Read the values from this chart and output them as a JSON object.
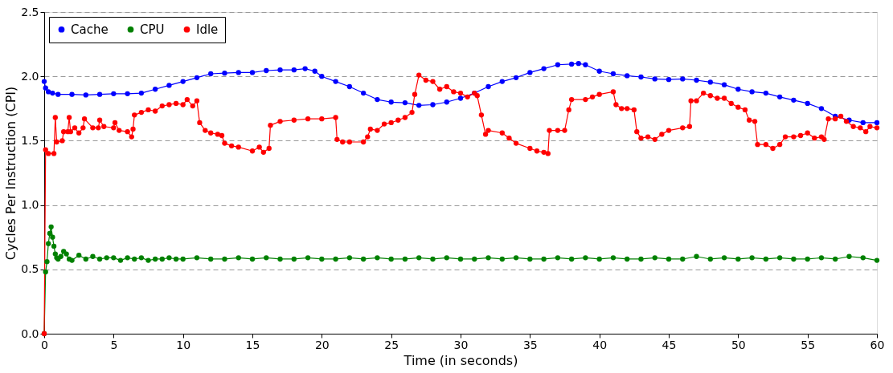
{
  "chart_data": {
    "type": "line",
    "xlabel": "Time (in seconds)",
    "ylabel": "Cycles Per Instruction (CPI)",
    "xlim": [
      0,
      60
    ],
    "xticks": [
      0,
      5,
      10,
      15,
      20,
      25,
      30,
      35,
      40,
      45,
      50,
      55,
      60
    ],
    "ylim": [
      0,
      2.5
    ],
    "yticks": [
      {
        "value": 0,
        "label": "0.0"
      },
      {
        "value": 0.5,
        "label": "0.5"
      },
      {
        "value": 1,
        "label": "1.0"
      },
      {
        "value": 1.5,
        "label": "1.5"
      },
      {
        "value": 2,
        "label": "2.0"
      },
      {
        "value": 2.5,
        "label": "2.5"
      }
    ],
    "grid": "y",
    "legend": "top left",
    "marker": "circle",
    "line_style": "solid",
    "series": [
      {
        "name": "Cache",
        "color": "#0000ff",
        "x": [
          0,
          0.1,
          0.3,
          0.6,
          1,
          2,
          3,
          4,
          5,
          6,
          7,
          8,
          9,
          10,
          11,
          12,
          13,
          14,
          15,
          16,
          17,
          18,
          18.8,
          19.5,
          20,
          21,
          22,
          23,
          24,
          25,
          26,
          27,
          28,
          29,
          30,
          31,
          32,
          33,
          34,
          35,
          36,
          37,
          38,
          38.5,
          39,
          40,
          41,
          42,
          43,
          44,
          45,
          46,
          47,
          48,
          49,
          50,
          51,
          52,
          53,
          54,
          55,
          56,
          57,
          58,
          59,
          60
        ],
        "values": [
          1.96,
          1.91,
          1.88,
          1.87,
          1.86,
          1.86,
          1.855,
          1.86,
          1.865,
          1.865,
          1.87,
          1.9,
          1.93,
          1.96,
          1.99,
          2.02,
          2.025,
          2.03,
          2.03,
          2.045,
          2.05,
          2.05,
          2.06,
          2.04,
          2.0,
          1.96,
          1.92,
          1.87,
          1.82,
          1.8,
          1.795,
          1.775,
          1.78,
          1.8,
          1.83,
          1.87,
          1.92,
          1.96,
          1.99,
          2.03,
          2.06,
          2.09,
          2.095,
          2.1,
          2.09,
          2.04,
          2.02,
          2.005,
          1.995,
          1.98,
          1.975,
          1.98,
          1.97,
          1.955,
          1.935,
          1.9,
          1.88,
          1.87,
          1.84,
          1.815,
          1.79,
          1.75,
          1.69,
          1.66,
          1.64,
          1.64
        ]
      },
      {
        "name": "CPU",
        "color": "#008000",
        "x": [
          0,
          0.1,
          0.2,
          0.3,
          0.4,
          0.5,
          0.6,
          0.7,
          0.8,
          0.9,
          1.0,
          1.2,
          1.4,
          1.6,
          1.8,
          2.0,
          2.5,
          3,
          3.5,
          4,
          4.5,
          5,
          5.5,
          6,
          6.5,
          7,
          7.5,
          8,
          8.5,
          9,
          9.5,
          10,
          11,
          12,
          13,
          14,
          15,
          16,
          17,
          18,
          19,
          20,
          21,
          22,
          23,
          24,
          25,
          26,
          27,
          28,
          29,
          30,
          31,
          32,
          33,
          34,
          35,
          36,
          37,
          38,
          39,
          40,
          41,
          42,
          43,
          44,
          45,
          46,
          47,
          48,
          49,
          50,
          51,
          52,
          53,
          54,
          55,
          56,
          57,
          58,
          59,
          60
        ],
        "values": [
          0,
          0.48,
          0.56,
          0.7,
          0.78,
          0.83,
          0.75,
          0.68,
          0.62,
          0.59,
          0.58,
          0.6,
          0.64,
          0.62,
          0.58,
          0.57,
          0.61,
          0.58,
          0.6,
          0.58,
          0.59,
          0.59,
          0.57,
          0.59,
          0.58,
          0.59,
          0.57,
          0.58,
          0.58,
          0.59,
          0.58,
          0.58,
          0.59,
          0.58,
          0.58,
          0.59,
          0.58,
          0.59,
          0.58,
          0.58,
          0.59,
          0.58,
          0.58,
          0.59,
          0.58,
          0.59,
          0.58,
          0.58,
          0.59,
          0.58,
          0.59,
          0.58,
          0.58,
          0.59,
          0.58,
          0.59,
          0.58,
          0.58,
          0.59,
          0.58,
          0.59,
          0.58,
          0.59,
          0.58,
          0.58,
          0.59,
          0.58,
          0.58,
          0.6,
          0.58,
          0.59,
          0.58,
          0.59,
          0.58,
          0.59,
          0.58,
          0.58,
          0.59,
          0.58,
          0.6,
          0.59,
          0.57
        ]
      },
      {
        "name": "Idle",
        "color": "#ff0000",
        "x": [
          0,
          0.1,
          0.3,
          0.7,
          0.8,
          0.9,
          1.3,
          1.4,
          1.7,
          1.8,
          1.9,
          2.2,
          2.5,
          2.8,
          2.9,
          3.5,
          3.9,
          4,
          4.3,
          5,
          5.1,
          5.4,
          6,
          6.3,
          6.4,
          6.5,
          7,
          7.5,
          8,
          8.5,
          9,
          9.5,
          10,
          10.3,
          10.7,
          11,
          11.2,
          11.6,
          12,
          12.5,
          12.8,
          13,
          13.5,
          14,
          15,
          15.5,
          15.8,
          16.2,
          16.3,
          17,
          18,
          19,
          20,
          21,
          21.1,
          21.5,
          22,
          23,
          23.3,
          23.5,
          24,
          24.5,
          25,
          25.5,
          26,
          26.5,
          26.7,
          27,
          27.5,
          28,
          28.5,
          29,
          29.5,
          30,
          30.5,
          31,
          31.2,
          31.5,
          31.8,
          32,
          33,
          33.5,
          34,
          35,
          35.5,
          36,
          36.3,
          36.4,
          37,
          37.5,
          37.8,
          38,
          39,
          39.5,
          40,
          41,
          41.2,
          41.6,
          42,
          42.5,
          42.7,
          43,
          43.5,
          44,
          44.5,
          45,
          46,
          46.5,
          46.6,
          47,
          47.5,
          48,
          48.5,
          49,
          49.5,
          50,
          50.5,
          50.8,
          51.2,
          51.4,
          52,
          52.5,
          53,
          53.4,
          54,
          54.5,
          55,
          55.5,
          56,
          56.2,
          56.5,
          57,
          57.4,
          57.8,
          58.3,
          58.8,
          59.2,
          59.5,
          60
        ],
        "values": [
          0,
          1.43,
          1.4,
          1.4,
          1.68,
          1.49,
          1.5,
          1.57,
          1.57,
          1.68,
          1.57,
          1.6,
          1.56,
          1.6,
          1.67,
          1.6,
          1.6,
          1.66,
          1.61,
          1.6,
          1.64,
          1.58,
          1.57,
          1.53,
          1.59,
          1.7,
          1.72,
          1.74,
          1.73,
          1.77,
          1.78,
          1.79,
          1.78,
          1.82,
          1.77,
          1.81,
          1.64,
          1.58,
          1.56,
          1.55,
          1.54,
          1.48,
          1.46,
          1.45,
          1.42,
          1.45,
          1.41,
          1.44,
          1.62,
          1.65,
          1.66,
          1.67,
          1.67,
          1.68,
          1.51,
          1.49,
          1.49,
          1.49,
          1.53,
          1.59,
          1.58,
          1.63,
          1.64,
          1.66,
          1.68,
          1.72,
          1.86,
          2.01,
          1.97,
          1.96,
          1.9,
          1.92,
          1.88,
          1.87,
          1.84,
          1.87,
          1.85,
          1.7,
          1.55,
          1.58,
          1.56,
          1.52,
          1.48,
          1.44,
          1.42,
          1.41,
          1.4,
          1.58,
          1.58,
          1.58,
          1.74,
          1.82,
          1.82,
          1.84,
          1.86,
          1.88,
          1.78,
          1.75,
          1.75,
          1.74,
          1.57,
          1.52,
          1.53,
          1.51,
          1.55,
          1.58,
          1.6,
          1.61,
          1.81,
          1.81,
          1.87,
          1.85,
          1.83,
          1.83,
          1.79,
          1.76,
          1.74,
          1.66,
          1.65,
          1.47,
          1.47,
          1.44,
          1.47,
          1.53,
          1.53,
          1.54,
          1.56,
          1.52,
          1.53,
          1.51,
          1.67,
          1.67,
          1.69,
          1.65,
          1.61,
          1.6,
          1.57,
          1.61,
          1.6
        ]
      }
    ]
  }
}
